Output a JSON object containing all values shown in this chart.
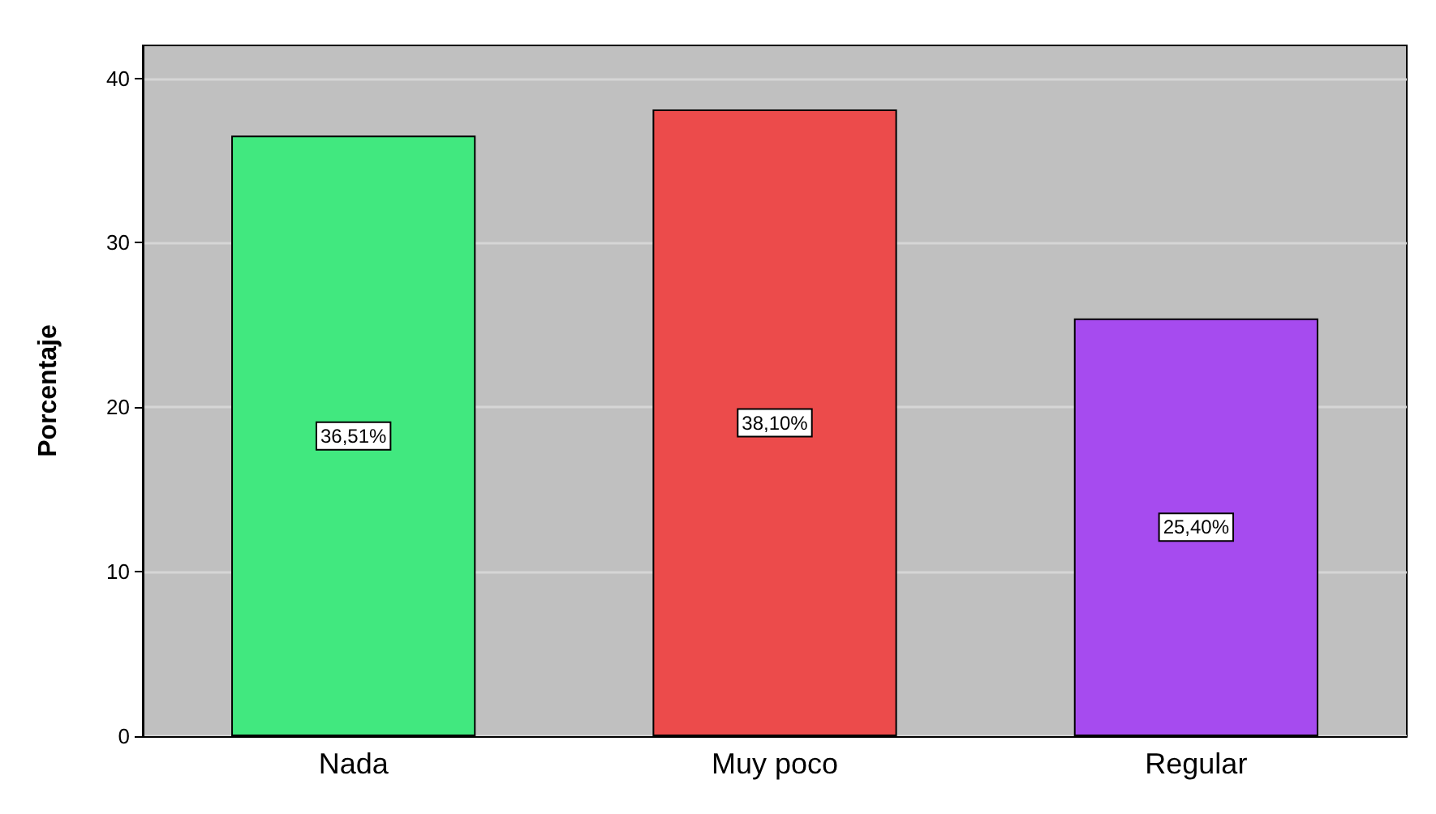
{
  "chart_data": {
    "type": "bar",
    "ylabel": "Porcentaje",
    "categories": [
      "Nada",
      "Muy poco",
      "Regular"
    ],
    "values": [
      36.51,
      38.1,
      25.4
    ],
    "colors": [
      "#41e87f",
      "#ec4b4b",
      "#a64bef"
    ],
    "value_labels": [
      "36,51%",
      "38,10%",
      "25,40%"
    ],
    "ylim": [
      0,
      42
    ],
    "yticks": [
      0,
      10,
      20,
      30,
      40
    ],
    "grid": "y"
  }
}
